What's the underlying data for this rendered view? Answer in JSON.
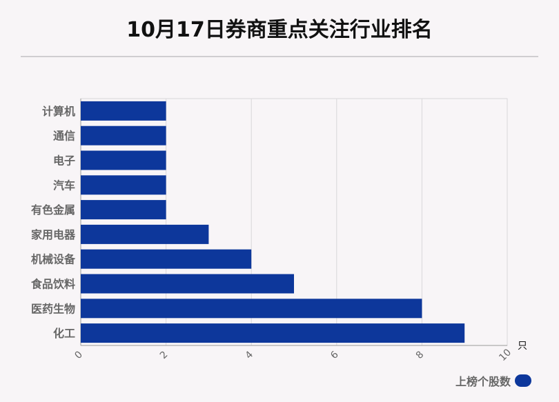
{
  "title": "10月17日券商重点关注行业排名",
  "legend": {
    "label": "上榜个股数"
  },
  "colors": {
    "bar": "#0d379b",
    "grid": "#d9d7da",
    "axis": "#9a9a9a",
    "label": "#666666"
  },
  "chart_data": {
    "type": "bar",
    "orientation": "horizontal",
    "title": "10月17日券商重点关注行业排名",
    "categories": [
      "计算机",
      "通信",
      "电子",
      "汽车",
      "有色金属",
      "家用电器",
      "机械设备",
      "食品饮料",
      "医药生物",
      "化工"
    ],
    "series": [
      {
        "name": "上榜个股数",
        "values": [
          2,
          2,
          2,
          2,
          2,
          3,
          4,
          5,
          8,
          9
        ]
      }
    ],
    "xlim": [
      0,
      10
    ],
    "xticks": [
      "0",
      "2",
      "4",
      "6",
      "8",
      "10"
    ],
    "xunit": "只",
    "grid": true,
    "legend_position": "bottom-right"
  }
}
